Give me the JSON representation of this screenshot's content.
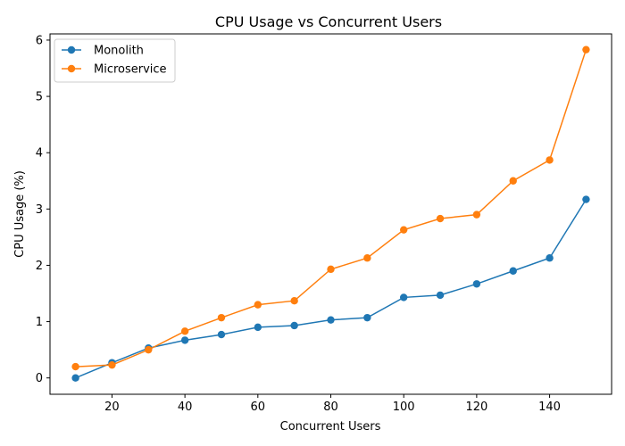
{
  "chart_data": {
    "type": "line",
    "title": "CPU Usage vs Concurrent Users",
    "xlabel": "Concurrent Users",
    "ylabel": "CPU Usage (%)",
    "x": [
      10,
      20,
      30,
      40,
      50,
      60,
      70,
      80,
      90,
      100,
      110,
      120,
      130,
      140,
      150
    ],
    "xlim": [
      3,
      157
    ],
    "ylim": [
      -0.29,
      6.11
    ],
    "xticks": [
      20,
      40,
      60,
      80,
      100,
      120,
      140
    ],
    "yticks": [
      0,
      1,
      2,
      3,
      4,
      5,
      6
    ],
    "grid": false,
    "legend_position": "top-left",
    "series": [
      {
        "name": "Monolith",
        "color": "#1f77b4",
        "marker": "circle",
        "values": [
          0.0,
          0.27,
          0.53,
          0.67,
          0.77,
          0.9,
          0.93,
          1.03,
          1.07,
          1.43,
          1.47,
          1.67,
          1.9,
          2.13,
          3.17
        ]
      },
      {
        "name": "Microservice",
        "color": "#ff7f0e",
        "marker": "circle",
        "values": [
          0.2,
          0.23,
          0.5,
          0.83,
          1.07,
          1.3,
          1.37,
          1.93,
          2.13,
          2.63,
          2.83,
          2.9,
          3.5,
          3.87,
          5.83
        ]
      }
    ]
  }
}
